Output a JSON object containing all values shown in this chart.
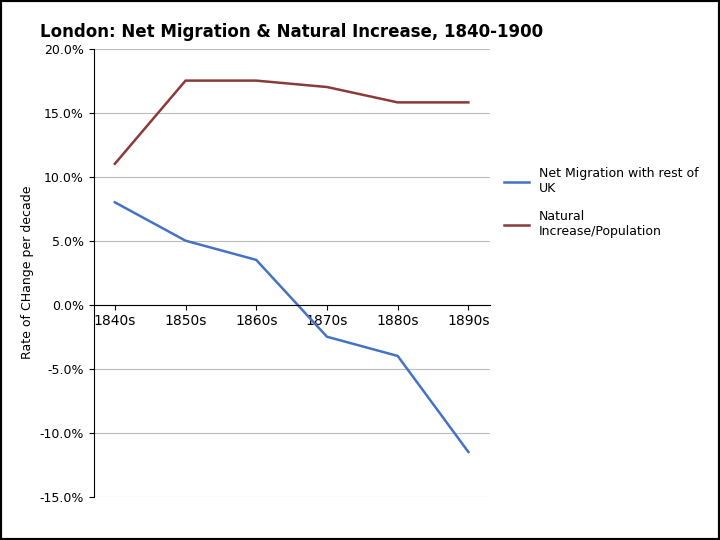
{
  "title": "London: Net Migration & Natural Increase, 1840-1900",
  "ylabel": "Rate of CHange per decade",
  "categories": [
    "1840s",
    "1850s",
    "1860s",
    "1870s",
    "1880s",
    "1890s"
  ],
  "net_migration": [
    0.08,
    0.05,
    0.035,
    -0.025,
    -0.04,
    -0.115
  ],
  "natural_increase": [
    0.11,
    0.175,
    0.175,
    0.17,
    0.158,
    0.158
  ],
  "net_migration_color": "#4472C4",
  "natural_increase_color": "#8B3A3A",
  "ylim": [
    -0.15,
    0.2
  ],
  "yticks": [
    -0.15,
    -0.1,
    -0.05,
    0.0,
    0.05,
    0.1,
    0.15,
    0.2
  ],
  "legend_net_migration": "Net Migration with rest of\nUK",
  "legend_natural_increase": "Natural\nIncrease/Population",
  "bg_color": "#ffffff",
  "grid_color": "#bbbbbb",
  "line_width": 1.8,
  "title_fontsize": 12,
  "axis_label_fontsize": 9,
  "tick_fontsize": 9,
  "legend_fontsize": 9
}
